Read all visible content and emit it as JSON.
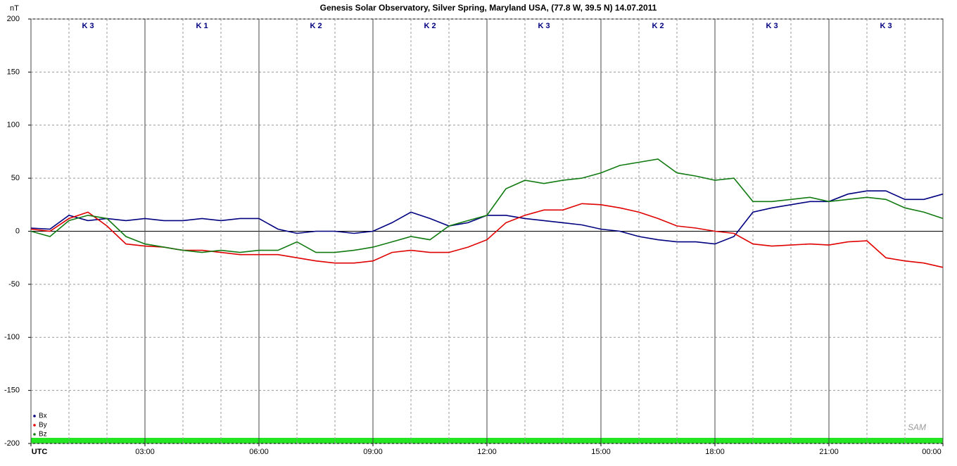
{
  "chart_data": {
    "type": "line",
    "title": "Genesis Solar Observatory, Silver Spring, Maryland USA, (77.8 W, 39.5 N)  14.07.2011",
    "y_label": "nT",
    "logo": "SAM",
    "k_indices": [
      "K 3",
      "K 1",
      "K 2",
      "K 2",
      "K 3",
      "K 2",
      "K 3",
      "K 3"
    ],
    "x": [
      0,
      0.5,
      1,
      1.5,
      2,
      2.5,
      3,
      3.5,
      4,
      4.5,
      5,
      5.5,
      6,
      6.5,
      7,
      7.5,
      8,
      8.5,
      9,
      9.5,
      10,
      10.5,
      11,
      11.5,
      12,
      12.5,
      13,
      13.5,
      14,
      14.5,
      15,
      15.5,
      16,
      16.5,
      17,
      17.5,
      18,
      18.5,
      19,
      19.5,
      20,
      20.5,
      21,
      21.5,
      22,
      22.5,
      23,
      23.5,
      24
    ],
    "series": [
      {
        "name": "Bx",
        "color": "#000080",
        "values": [
          3,
          2,
          15,
          10,
          12,
          10,
          12,
          10,
          10,
          12,
          10,
          12,
          12,
          2,
          -2,
          0,
          0,
          -2,
          0,
          8,
          18,
          12,
          5,
          8,
          15,
          15,
          12,
          10,
          8,
          6,
          2,
          0,
          -5,
          -8,
          -10,
          -10,
          -12,
          -5,
          18,
          22,
          25,
          28,
          28,
          35,
          38,
          38,
          30,
          30,
          35
        ]
      },
      {
        "name": "By",
        "color": "#e00000",
        "values": [
          2,
          0,
          12,
          18,
          5,
          -12,
          -14,
          -15,
          -18,
          -18,
          -20,
          -22,
          -22,
          -22,
          -25,
          -28,
          -30,
          -30,
          -28,
          -20,
          -18,
          -20,
          -20,
          -15,
          -8,
          8,
          15,
          20,
          20,
          26,
          25,
          22,
          18,
          12,
          5,
          3,
          0,
          -2,
          -12,
          -14,
          -13,
          -12,
          -13,
          -10,
          -9,
          -25,
          -28,
          -30,
          -34
        ]
      },
      {
        "name": "Bz",
        "color": "#117a11",
        "values": [
          0,
          -5,
          10,
          15,
          12,
          -5,
          -12,
          -15,
          -18,
          -20,
          -18,
          -20,
          -18,
          -18,
          -10,
          -20,
          -20,
          -18,
          -15,
          -10,
          -5,
          -8,
          5,
          10,
          15,
          40,
          48,
          45,
          48,
          50,
          55,
          62,
          65,
          68,
          55,
          52,
          48,
          50,
          28,
          28,
          30,
          32,
          28,
          30,
          32,
          30,
          22,
          18,
          12
        ]
      }
    ],
    "xlim": [
      0,
      24
    ],
    "xticks": [
      {
        "value": 0,
        "label": "UTC"
      },
      {
        "value": 3,
        "label": "03:00"
      },
      {
        "value": 6,
        "label": "06:00"
      },
      {
        "value": 9,
        "label": "09:00"
      },
      {
        "value": 12,
        "label": "12:00"
      },
      {
        "value": 15,
        "label": "15:00"
      },
      {
        "value": 18,
        "label": "18:00"
      },
      {
        "value": 21,
        "label": "21:00"
      },
      {
        "value": 24,
        "label": "00:00"
      }
    ],
    "xminorticks": [
      1,
      2,
      4,
      5,
      7,
      8,
      10,
      11,
      13,
      14,
      16,
      17,
      19,
      20,
      22,
      23
    ],
    "ylim": [
      -200,
      200
    ],
    "yticks": [
      -200,
      -150,
      -100,
      -50,
      0,
      50,
      100,
      150,
      200
    ],
    "grid": true,
    "legend": "lower left"
  }
}
